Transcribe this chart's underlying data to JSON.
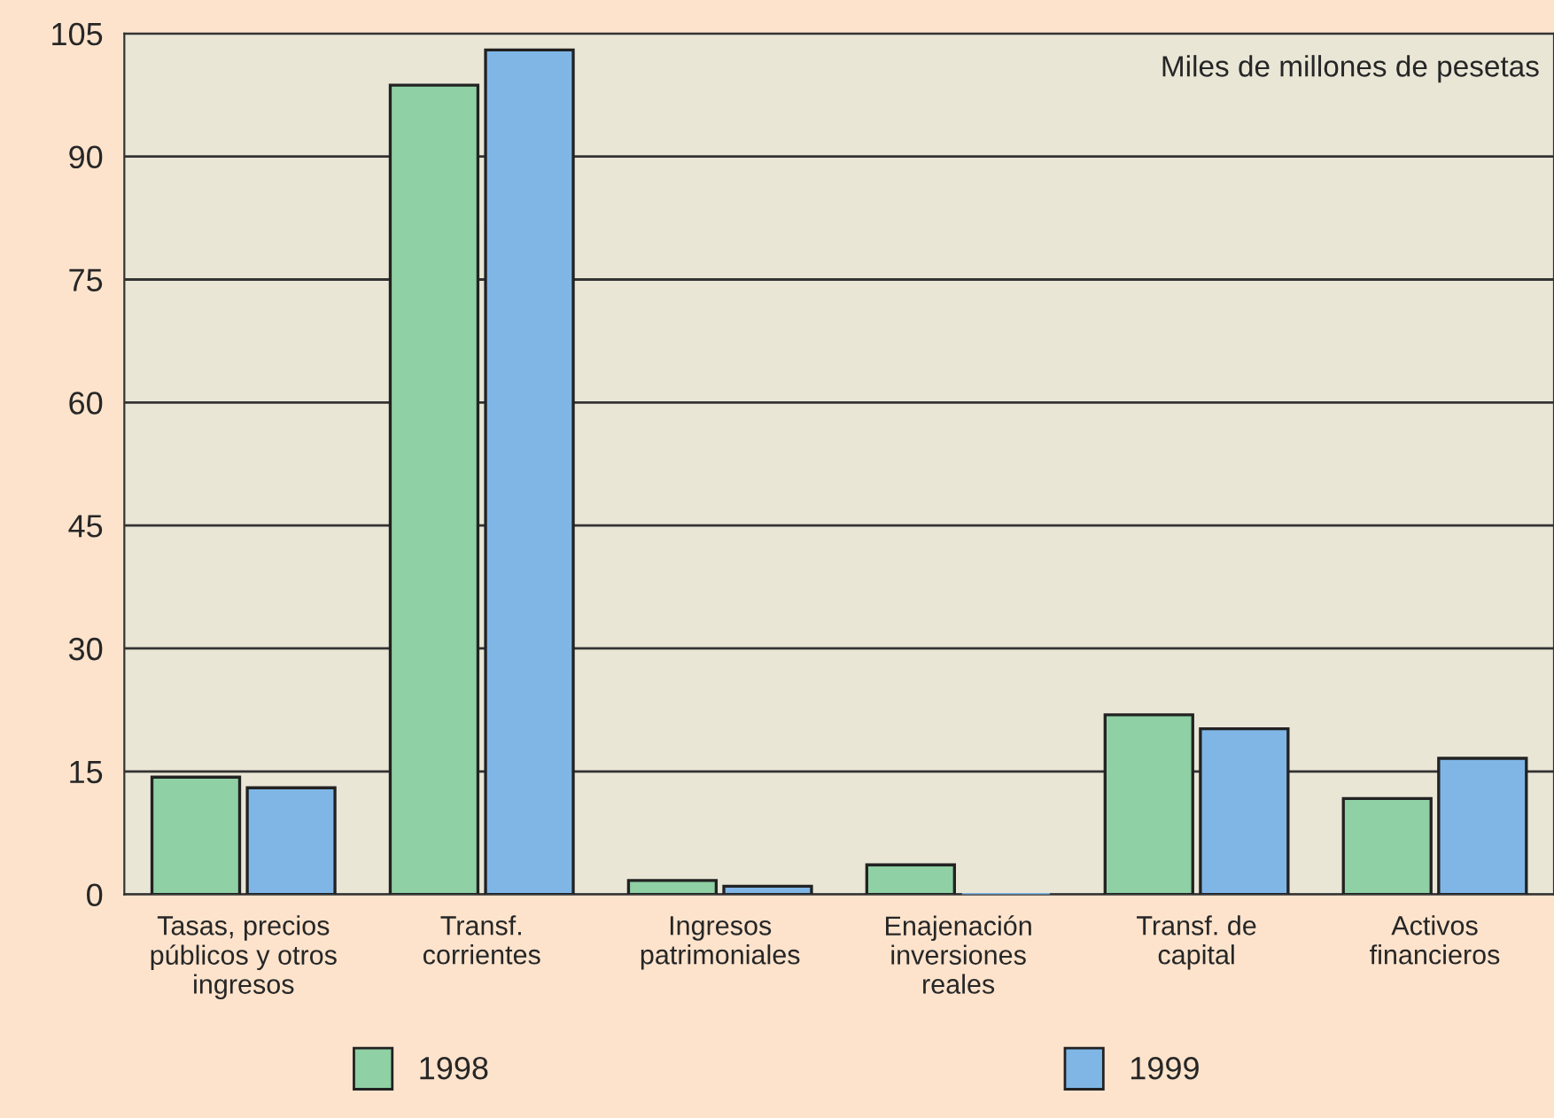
{
  "chart_data": {
    "type": "bar",
    "categories": [
      "Tasas, precios\npúblicos y otros\ningresos",
      "Transf.\ncorrientes",
      "Ingresos\npatrimoniales",
      "Enajenación\ninversiones\nreales",
      "Transf. de\ncapital",
      "Activos\nfinancieros"
    ],
    "series": [
      {
        "name": "1998",
        "color": "#8fd0a4",
        "values": [
          14.3,
          98.7,
          1.7,
          3.6,
          21.9,
          11.7
        ]
      },
      {
        "name": "1999",
        "color": "#7fb6e6",
        "values": [
          13.0,
          103,
          1.0,
          0,
          20.2,
          16.6
        ]
      }
    ],
    "ylim": [
      0,
      105
    ],
    "yticks": [
      0,
      15,
      30,
      45,
      60,
      75,
      90,
      105
    ],
    "grid": "y",
    "legend": "bottom",
    "annotations": [
      "Miles de millones de pesetas"
    ]
  }
}
